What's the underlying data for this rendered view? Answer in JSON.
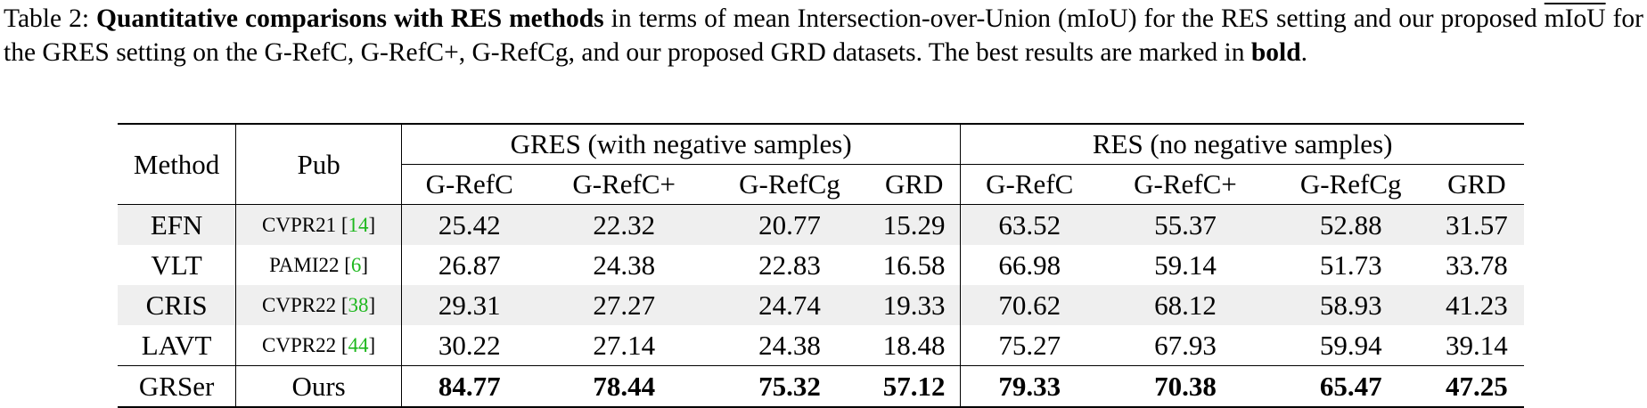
{
  "caption": {
    "label": "Table 2:",
    "bold_lead": "Quantitative comparisons with RES methods",
    "text_1": " in terms of mean Intersection-over-Union (mIoU) for the RES setting and our proposed ",
    "overline_term": "mIoU",
    "text_2": " for the GRES setting on the G-RefC, G-RefC+, G-RefCg, and our proposed GRD datasets. The best results are marked in ",
    "bold_word": "bold",
    "text_end": "."
  },
  "table": {
    "col_method": "Method",
    "col_pub": "Pub",
    "group_gres": "GRES (with negative samples)",
    "group_res": "RES (no negative samples)",
    "datasets": [
      "G-RefC",
      "G-RefC+",
      "G-RefCg",
      "GRD"
    ],
    "rows": [
      {
        "method": "EFN",
        "pub": "CVPR21",
        "cite": "14",
        "values": [
          "25.42",
          "22.32",
          "20.77",
          "15.29",
          "63.52",
          "55.37",
          "52.88",
          "31.57"
        ]
      },
      {
        "method": "VLT",
        "pub": "PAMI22",
        "cite": "6",
        "values": [
          "26.87",
          "24.38",
          "22.83",
          "16.58",
          "66.98",
          "59.14",
          "51.73",
          "33.78"
        ]
      },
      {
        "method": "CRIS",
        "pub": "CVPR22",
        "cite": "38",
        "values": [
          "29.31",
          "27.27",
          "24.74",
          "19.33",
          "70.62",
          "68.12",
          "58.93",
          "41.23"
        ]
      },
      {
        "method": "LAVT",
        "pub": "CVPR22",
        "cite": "44",
        "values": [
          "30.22",
          "27.14",
          "24.38",
          "18.48",
          "75.27",
          "67.93",
          "59.94",
          "39.14"
        ]
      }
    ],
    "best_row": {
      "method": "GRSer",
      "pub": "Ours",
      "values": [
        "84.77",
        "78.44",
        "75.32",
        "57.12",
        "79.33",
        "70.38",
        "65.47",
        "47.25"
      ]
    }
  }
}
